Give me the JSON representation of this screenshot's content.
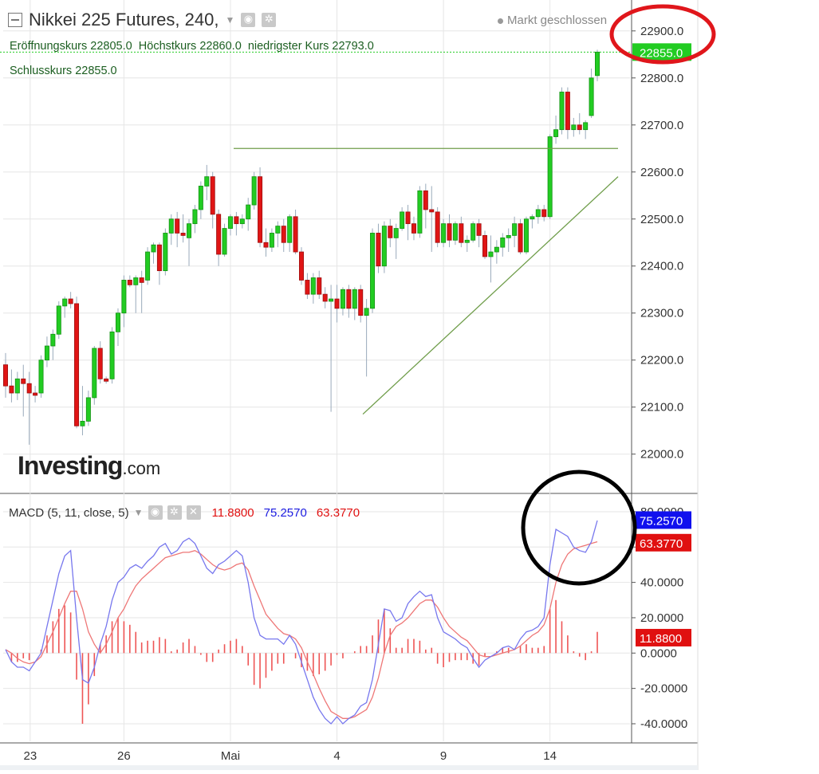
{
  "header": {
    "title": "Nikkei 225 Futures, 240,",
    "status": "Markt geschlossen",
    "ohlc": {
      "open_label": "Eröffnungskurs",
      "open": "22805.0",
      "high_label": "Höchstkurs",
      "high": "22860.0",
      "low_label": "niedrigster Kurs",
      "low": "22793.0",
      "close_label": "Schlusskurs",
      "close": "22855.0"
    }
  },
  "logo": {
    "main": "Investing",
    "suffix": ".com"
  },
  "macd_legend": {
    "label": "MACD (5, 11, close, 5)",
    "value1": "11.8800",
    "value2": "75.2570",
    "value3": "63.3770"
  },
  "colors": {
    "up": "#22cc22",
    "down": "#e01515",
    "macd_line": "#7777ee",
    "signal_line": "#ee7777",
    "histogram": "#ee5555",
    "grid": "#e6e6e6",
    "annotation_red": "#e0161b",
    "annotation_black": "#000000",
    "trendline": "#6f9d4a",
    "price_badge": "#22cc22",
    "macd_badge": "#1010ee",
    "signal_badge": "#e01010"
  },
  "chart_data": [
    {
      "type": "candlestick",
      "title": "Nikkei 225 Futures, 240,",
      "ylim": [
        21910,
        22990
      ],
      "y_ticks": [
        "22000.0",
        "22100.0",
        "22200.0",
        "22300.0",
        "22400.0",
        "22500.0",
        "22600.0",
        "22700.0",
        "22800.0",
        "22900.0"
      ],
      "x_ticks": [
        "23",
        "26",
        "Mai",
        "4",
        "9",
        "14"
      ],
      "x_tick_index": [
        2,
        20,
        38,
        56,
        74,
        92
      ],
      "last_price": "22855.0",
      "grid": true,
      "ohlc": [
        [
          22190,
          22215,
          22120,
          22145
        ],
        [
          22145,
          22180,
          22110,
          22130
        ],
        [
          22130,
          22175,
          22115,
          22160
        ],
        [
          22160,
          22190,
          22080,
          22150
        ],
        [
          22150,
          22175,
          22020,
          22130
        ],
        [
          22130,
          22145,
          22110,
          22125
        ],
        [
          22130,
          22210,
          22120,
          22200
        ],
        [
          22200,
          22250,
          22185,
          22230
        ],
        [
          22230,
          22265,
          22200,
          22255
        ],
        [
          22255,
          22325,
          22245,
          22315
        ],
        [
          22315,
          22335,
          22290,
          22330
        ],
        [
          22330,
          22345,
          22310,
          22320
        ],
        [
          22320,
          22335,
          22055,
          22060
        ],
        [
          22060,
          22145,
          22040,
          22070
        ],
        [
          22070,
          22135,
          22060,
          22120
        ],
        [
          22120,
          22230,
          22105,
          22225
        ],
        [
          22225,
          22240,
          22150,
          22160
        ],
        [
          22160,
          22165,
          22150,
          22155
        ],
        [
          22160,
          22270,
          22150,
          22260
        ],
        [
          22260,
          22310,
          22230,
          22300
        ],
        [
          22300,
          22380,
          22270,
          22370
        ],
        [
          22370,
          22380,
          22355,
          22360
        ],
        [
          22360,
          22380,
          22300,
          22375
        ],
        [
          22375,
          22390,
          22300,
          22365
        ],
        [
          22370,
          22440,
          22360,
          22430
        ],
        [
          22430,
          22450,
          22405,
          22445
        ],
        [
          22445,
          22450,
          22360,
          22390
        ],
        [
          22390,
          22480,
          22380,
          22470
        ],
        [
          22470,
          22510,
          22445,
          22500
        ],
        [
          22500,
          22515,
          22440,
          22470
        ],
        [
          22470,
          22510,
          22450,
          22465
        ],
        [
          22460,
          22500,
          22400,
          22490
        ],
        [
          22490,
          22530,
          22470,
          22520
        ],
        [
          22520,
          22580,
          22500,
          22570
        ],
        [
          22570,
          22615,
          22540,
          22590
        ],
        [
          22590,
          22600,
          22480,
          22510
        ],
        [
          22510,
          22520,
          22400,
          22425
        ],
        [
          22425,
          22490,
          22420,
          22480
        ],
        [
          22480,
          22510,
          22465,
          22505
        ],
        [
          22505,
          22515,
          22465,
          22490
        ],
        [
          22490,
          22510,
          22480,
          22500
        ],
        [
          22500,
          22545,
          22475,
          22530
        ],
        [
          22530,
          22600,
          22520,
          22590
        ],
        [
          22590,
          22610,
          22440,
          22450
        ],
        [
          22450,
          22480,
          22420,
          22440
        ],
        [
          22440,
          22480,
          22430,
          22470
        ],
        [
          22470,
          22495,
          22440,
          22485
        ],
        [
          22485,
          22500,
          22430,
          22450
        ],
        [
          22450,
          22510,
          22430,
          22505
        ],
        [
          22505,
          22520,
          22425,
          22430
        ],
        [
          22430,
          22440,
          22360,
          22370
        ],
        [
          22370,
          22385,
          22330,
          22340
        ],
        [
          22340,
          22385,
          22320,
          22375
        ],
        [
          22375,
          22390,
          22330,
          22340
        ],
        [
          22340,
          22355,
          22310,
          22325
        ],
        [
          22325,
          22360,
          22090,
          22330
        ],
        [
          22330,
          22360,
          22280,
          22310
        ],
        [
          22310,
          22355,
          22295,
          22350
        ],
        [
          22350,
          22360,
          22290,
          22310
        ],
        [
          22310,
          22355,
          22285,
          22350
        ],
        [
          22350,
          22360,
          22280,
          22295
        ],
        [
          22295,
          22330,
          22165,
          22310
        ],
        [
          22310,
          22480,
          22300,
          22470
        ],
        [
          22470,
          22490,
          22385,
          22400
        ],
        [
          22400,
          22495,
          22385,
          22485
        ],
        [
          22485,
          22500,
          22440,
          22460
        ],
        [
          22460,
          22490,
          22415,
          22480
        ],
        [
          22480,
          22525,
          22475,
          22515
        ],
        [
          22515,
          22530,
          22455,
          22490
        ],
        [
          22490,
          22505,
          22455,
          22470
        ],
        [
          22470,
          22570,
          22460,
          22560
        ],
        [
          22560,
          22575,
          22480,
          22520
        ],
        [
          22520,
          22570,
          22430,
          22515
        ],
        [
          22515,
          22525,
          22440,
          22450
        ],
        [
          22450,
          22500,
          22440,
          22490
        ],
        [
          22490,
          22510,
          22440,
          22455
        ],
        [
          22455,
          22495,
          22445,
          22490
        ],
        [
          22490,
          22505,
          22440,
          22450
        ],
        [
          22450,
          22465,
          22430,
          22455
        ],
        [
          22455,
          22495,
          22450,
          22490
        ],
        [
          22490,
          22500,
          22440,
          22465
        ],
        [
          22465,
          22475,
          22415,
          22420
        ],
        [
          22420,
          22465,
          22365,
          22430
        ],
        [
          22430,
          22455,
          22405,
          22440
        ],
        [
          22440,
          22470,
          22420,
          22460
        ],
        [
          22460,
          22480,
          22430,
          22465
        ],
        [
          22465,
          22505,
          22440,
          22490
        ],
        [
          22490,
          22500,
          22425,
          22430
        ],
        [
          22430,
          22505,
          22425,
          22500
        ],
        [
          22500,
          22510,
          22480,
          22505
        ],
        [
          22505,
          22530,
          22490,
          22520
        ],
        [
          22520,
          22530,
          22495,
          22505
        ],
        [
          22505,
          22680,
          22500,
          22675
        ],
        [
          22675,
          22720,
          22660,
          22690
        ],
        [
          22690,
          22780,
          22680,
          22770
        ],
        [
          22770,
          22780,
          22670,
          22690
        ],
        [
          22690,
          22715,
          22675,
          22700
        ],
        [
          22700,
          22725,
          22680,
          22690
        ],
        [
          22690,
          22710,
          22670,
          22705
        ],
        [
          22720,
          22820,
          22715,
          22800
        ],
        [
          22805,
          22860,
          22793,
          22855
        ]
      ],
      "annotations": {
        "horizontal_line_value": 22650,
        "support_line": [
          [
            24,
            22085
          ],
          [
            101,
            22590
          ]
        ]
      }
    },
    {
      "type": "line",
      "title": "MACD (5, 11, close, 5)",
      "ylim": [
        -45,
        92
      ],
      "y_ticks": [
        "-40.0000",
        "-20.0000",
        "0.0000",
        "20.0000",
        "40.0000",
        "60.0000",
        "80.0000"
      ],
      "badges": [
        "75.2570",
        "63.3770",
        "11.8800"
      ],
      "series": [
        {
          "name": "MACD",
          "values": [
            2,
            -5,
            -8,
            -8,
            -10,
            -5,
            0,
            15,
            30,
            45,
            55,
            58,
            20,
            -15,
            -17,
            -8,
            5,
            15,
            30,
            40,
            43,
            48,
            50,
            48,
            52,
            55,
            60,
            62,
            56,
            58,
            63,
            65,
            62,
            55,
            48,
            45,
            50,
            52,
            55,
            58,
            55,
            40,
            20,
            10,
            8,
            8,
            8,
            5,
            10,
            5,
            -5,
            -15,
            -25,
            -32,
            -37,
            -40,
            -36,
            -40,
            -37,
            -35,
            -30,
            -28,
            -15,
            5,
            25,
            24,
            18,
            20,
            28,
            32,
            35,
            32,
            33,
            20,
            12,
            10,
            8,
            5,
            3,
            -3,
            -8,
            -4,
            -2,
            0,
            3,
            4,
            2,
            8,
            12,
            13,
            15,
            20,
            50,
            70,
            68,
            66,
            60,
            58,
            57,
            63,
            75
          ]
        },
        {
          "name": "Signal",
          "values": [
            2,
            0,
            -3,
            -5,
            -6,
            -5,
            -2,
            5,
            12,
            20,
            28,
            35,
            35,
            25,
            12,
            5,
            0,
            5,
            12,
            20,
            25,
            32,
            38,
            42,
            45,
            48,
            51,
            54,
            55,
            56,
            57,
            57,
            58,
            56,
            53,
            50,
            48,
            47,
            48,
            50,
            51,
            47,
            38,
            30,
            22,
            18,
            14,
            11,
            10,
            8,
            3,
            -5,
            -12,
            -20,
            -27,
            -33,
            -35,
            -37,
            -37,
            -36,
            -34,
            -32,
            -25,
            -14,
            0,
            10,
            15,
            17,
            20,
            24,
            28,
            30,
            30,
            26,
            20,
            15,
            12,
            9,
            7,
            3,
            -1,
            -2,
            -2,
            -1,
            0,
            1,
            2,
            4,
            7,
            10,
            12,
            16,
            25,
            40,
            50,
            56,
            59,
            60,
            61,
            62,
            63
          ]
        },
        {
          "name": "Histogram",
          "values": [
            0,
            -5,
            -5,
            -3,
            -4,
            0,
            2,
            10,
            18,
            25,
            27,
            23,
            -15,
            -40,
            -29,
            -13,
            5,
            10,
            18,
            20,
            18,
            16,
            12,
            6,
            7,
            7,
            9,
            8,
            1,
            2,
            6,
            8,
            4,
            -1,
            -5,
            -5,
            2,
            5,
            7,
            8,
            4,
            -7,
            -18,
            -20,
            -14,
            -10,
            -6,
            -6,
            0,
            -3,
            -8,
            -10,
            -13,
            -12,
            -10,
            -7,
            -1,
            -3,
            0,
            1,
            4,
            4,
            10,
            19,
            25,
            14,
            3,
            3,
            8,
            8,
            7,
            2,
            3,
            -6,
            -8,
            -5,
            -4,
            -4,
            -4,
            -6,
            -7,
            -2,
            0,
            1,
            3,
            3,
            0,
            4,
            5,
            3,
            3,
            4,
            25,
            30,
            18,
            10,
            1,
            -2,
            -4,
            1,
            12
          ]
        }
      ]
    }
  ]
}
